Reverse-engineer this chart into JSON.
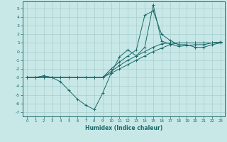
{
  "title": "",
  "xlabel": "Humidex (Indice chaleur)",
  "bg_color": "#c8e8e8",
  "grid_color": "#a8cece",
  "line_color": "#1a6868",
  "xlim": [
    -0.5,
    23.5
  ],
  "ylim": [
    -7.5,
    5.8
  ],
  "xticks": [
    0,
    1,
    2,
    3,
    4,
    5,
    6,
    7,
    8,
    9,
    10,
    11,
    12,
    13,
    14,
    15,
    16,
    17,
    18,
    19,
    20,
    21,
    22,
    23
  ],
  "yticks": [
    -7,
    -6,
    -5,
    -4,
    -3,
    -2,
    -1,
    0,
    1,
    2,
    3,
    4,
    5
  ],
  "line1_x": [
    0,
    1,
    2,
    3,
    4,
    5,
    6,
    7,
    8,
    9,
    10,
    11,
    12,
    13,
    14,
    15,
    16,
    17,
    18,
    19,
    20,
    21,
    22,
    23
  ],
  "line1_y": [
    -3.0,
    -3.0,
    -3.0,
    -3.0,
    -3.5,
    -4.5,
    -5.5,
    -6.2,
    -6.7,
    -4.8,
    -2.5,
    -0.6,
    0.2,
    -0.5,
    0.5,
    5.4,
    1.2,
    0.9,
    0.6,
    0.7,
    0.8,
    0.8,
    1.0,
    1.1
  ],
  "line2_x": [
    0,
    1,
    2,
    3,
    4,
    5,
    6,
    7,
    8,
    9,
    10,
    11,
    12,
    13,
    14,
    15,
    16,
    17,
    18,
    19,
    20,
    21,
    22,
    23
  ],
  "line2_y": [
    -3.0,
    -3.0,
    -3.0,
    -3.0,
    -3.0,
    -3.0,
    -3.0,
    -3.0,
    -3.0,
    -3.0,
    -2.5,
    -2.0,
    -1.5,
    -1.0,
    -0.5,
    0.0,
    0.4,
    0.8,
    1.0,
    1.0,
    1.0,
    1.0,
    1.0,
    1.1
  ],
  "line3_x": [
    0,
    1,
    2,
    3,
    4,
    5,
    6,
    7,
    8,
    9,
    10,
    11,
    12,
    13,
    14,
    15,
    16,
    17,
    18,
    19,
    20,
    21,
    22,
    23
  ],
  "line3_y": [
    -3.0,
    -3.0,
    -2.8,
    -3.0,
    -3.0,
    -3.0,
    -3.0,
    -3.0,
    -3.0,
    -3.0,
    -2.3,
    -1.6,
    -1.0,
    -0.5,
    0.0,
    0.5,
    0.9,
    1.0,
    1.0,
    1.0,
    1.0,
    1.0,
    1.0,
    1.1
  ],
  "line4_x": [
    0,
    1,
    2,
    3,
    4,
    5,
    6,
    7,
    8,
    9,
    10,
    11,
    12,
    13,
    14,
    15,
    16,
    17,
    18,
    19,
    20,
    21,
    22,
    23
  ],
  "line4_y": [
    -3.0,
    -3.0,
    -2.8,
    -3.0,
    -3.0,
    -3.0,
    -3.0,
    -3.0,
    -3.0,
    -3.0,
    -2.0,
    -1.2,
    -0.5,
    0.2,
    4.2,
    4.7,
    2.0,
    1.3,
    0.8,
    0.8,
    0.5,
    0.5,
    0.8,
    1.0
  ]
}
